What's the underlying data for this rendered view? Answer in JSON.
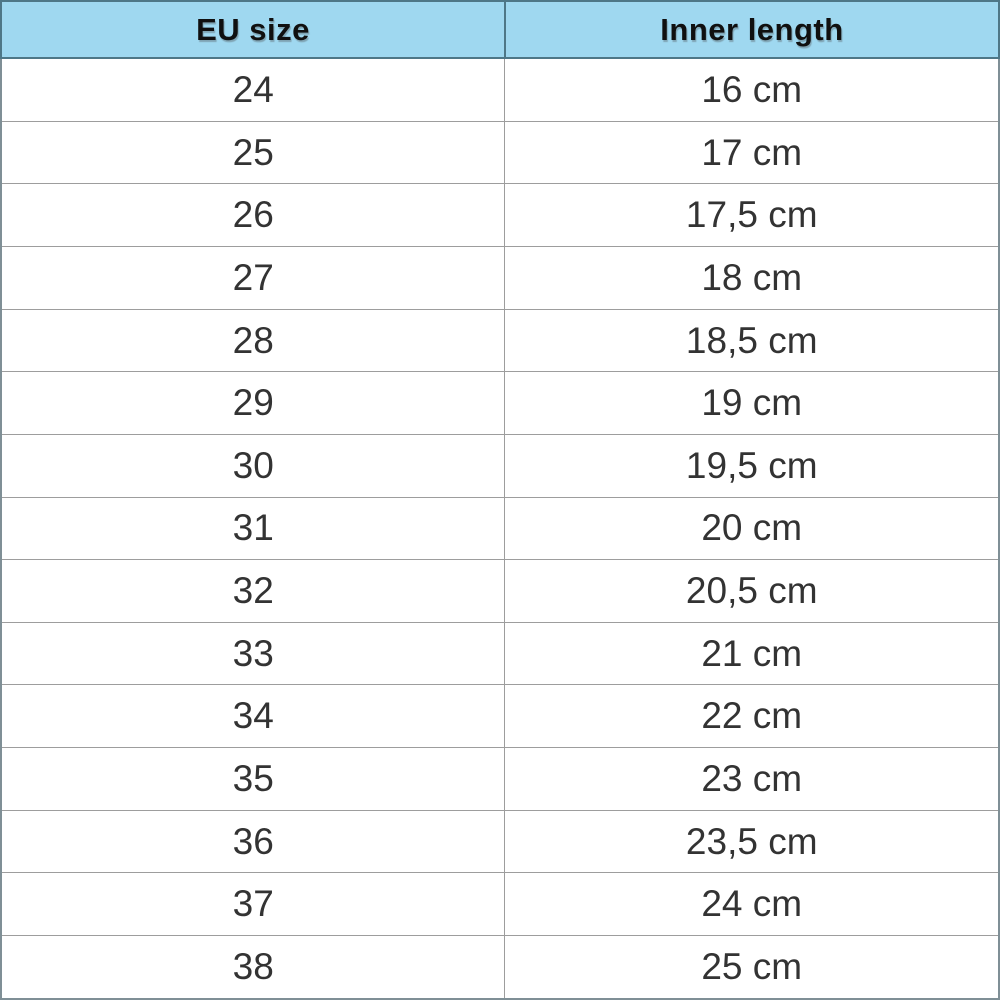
{
  "chart_data": {
    "type": "table",
    "columns": [
      "EU size",
      "Inner length"
    ],
    "rows": [
      [
        "24",
        "16 cm"
      ],
      [
        "25",
        "17 cm"
      ],
      [
        "26",
        "17,5 cm"
      ],
      [
        "27",
        "18 cm"
      ],
      [
        "28",
        "18,5 cm"
      ],
      [
        "29",
        "19 cm"
      ],
      [
        "30",
        "19,5 cm"
      ],
      [
        "31",
        "20 cm"
      ],
      [
        "32",
        "20,5 cm"
      ],
      [
        "33",
        "21 cm"
      ],
      [
        "34",
        "22 cm"
      ],
      [
        "35",
        "23 cm"
      ],
      [
        "36",
        "23,5 cm"
      ],
      [
        "37",
        "24 cm"
      ],
      [
        "38",
        "25 cm"
      ]
    ],
    "layout": {
      "grid": true,
      "header_position": "top"
    }
  },
  "colors": {
    "header_bg": "#9FD8F0",
    "header_border": "#4E7787",
    "body_border": "#9D9D9D",
    "outer_border": "#7F8F96",
    "header_text": "#101010",
    "body_text": "#333333",
    "row_bg": "#FFFFFF"
  }
}
